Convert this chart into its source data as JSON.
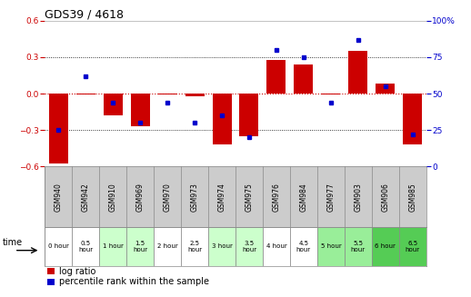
{
  "title": "GDS39 / 4618",
  "samples": [
    "GSM940",
    "GSM942",
    "GSM910",
    "GSM969",
    "GSM970",
    "GSM973",
    "GSM974",
    "GSM975",
    "GSM976",
    "GSM984",
    "GSM977",
    "GSM903",
    "GSM906",
    "GSM985"
  ],
  "time_labels": [
    "0 hour",
    "0.5\nhour",
    "1 hour",
    "1.5\nhour",
    "2 hour",
    "2.5\nhour",
    "3 hour",
    "3.5\nhour",
    "4 hour",
    "4.5\nhour",
    "5 hour",
    "5.5\nhour",
    "6 hour",
    "6.5\nhour"
  ],
  "log_ratio": [
    -0.58,
    -0.01,
    -0.18,
    -0.27,
    -0.01,
    -0.02,
    -0.42,
    -0.35,
    0.28,
    0.24,
    -0.01,
    0.35,
    0.08,
    -0.42
  ],
  "percentile": [
    25,
    62,
    44,
    30,
    44,
    30,
    35,
    20,
    80,
    75,
    44,
    87,
    55,
    22
  ],
  "bar_color": "#cc0000",
  "dot_color": "#0000cc",
  "ylim_left": [
    -0.6,
    0.6
  ],
  "ylim_right": [
    0,
    100
  ],
  "yticks_left": [
    -0.6,
    -0.3,
    0.0,
    0.3,
    0.6
  ],
  "yticks_right": [
    0,
    25,
    50,
    75,
    100
  ],
  "bg_color": "#ffffff",
  "zero_line_color": "#cc0000",
  "sample_bg": "#cccccc",
  "bar_width": 0.7,
  "legend_log": "log ratio",
  "legend_pct": "percentile rank within the sample",
  "time_bg": [
    "#ffffff",
    "#ffffff",
    "#ccffcc",
    "#ccffcc",
    "#ffffff",
    "#ffffff",
    "#ccffcc",
    "#ccffcc",
    "#ffffff",
    "#ffffff",
    "#99ee99",
    "#99ee99",
    "#55cc55",
    "#55cc55"
  ]
}
